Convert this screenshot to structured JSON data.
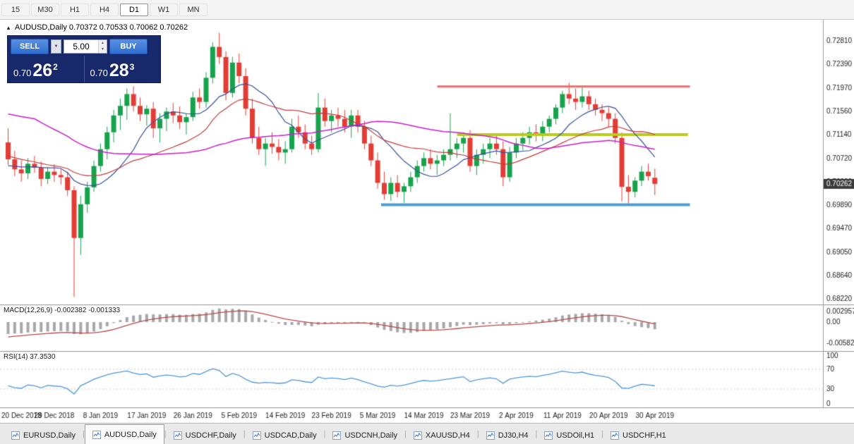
{
  "toolbar": {
    "timeframes": [
      {
        "label": "15",
        "active": false
      },
      {
        "label": "M30",
        "active": false
      },
      {
        "label": "H1",
        "active": false
      },
      {
        "label": "H4",
        "active": false
      },
      {
        "label": "D1",
        "active": true
      },
      {
        "label": "W1",
        "active": false
      },
      {
        "label": "MN",
        "active": false
      }
    ]
  },
  "symbol_bar": {
    "collapse_icon": "▲",
    "text": "AUDUSD,Daily 0.70372 0.70533 0.70062 0.70262"
  },
  "trade_panel": {
    "sell_label": "SELL",
    "buy_label": "BUY",
    "volume": "5.00",
    "dropdown_icon": "▼",
    "spin_up": "▲",
    "spin_down": "▼",
    "sell_price": {
      "small": "0.70",
      "big": "26",
      "sup": "2"
    },
    "buy_price": {
      "small": "0.70",
      "big": "28",
      "sup": "3"
    }
  },
  "main_axis": {
    "labels": [
      "0.72810",
      "0.72390",
      "0.71970",
      "0.71560",
      "0.71140",
      "0.70720",
      "0.70300",
      "0.69890",
      "0.69470",
      "0.69050",
      "0.68640",
      "0.68220"
    ],
    "current_price_label": "0.70262"
  },
  "macd_panel": {
    "title": "MACD(12,26,9) -0.002382 -0.001333",
    "axis": [
      {
        "label": "0.002957",
        "value": 0.002957
      },
      {
        "label": "0.00",
        "value": 0
      },
      {
        "label": "-0.005823",
        "value": -0.005823
      }
    ]
  },
  "rsi_panel": {
    "title": "RSI(14) 37.3530",
    "axis": [
      {
        "label": "100",
        "value": 100
      },
      {
        "label": "70",
        "value": 70
      },
      {
        "label": "30",
        "value": 30
      },
      {
        "label": "0",
        "value": 0
      }
    ]
  },
  "date_axis": {
    "labels": [
      "20 Dec 2018",
      "29 Dec 2018",
      "8 Jan 2019",
      "17 Jan 2019",
      "26 Jan 2019",
      "5 Feb 2019",
      "14 Feb 2019",
      "23 Feb 2019",
      "5 Mar 2019",
      "14 Mar 2019",
      "23 Mar 2019",
      "2 Apr 2019",
      "11 Apr 2019",
      "20 Apr 2019",
      "30 Apr 2019"
    ],
    "label_every": 7
  },
  "tabs": [
    {
      "label": "EURUSD,Daily",
      "active": false
    },
    {
      "label": "AUDUSD,Daily",
      "active": true
    },
    {
      "label": "USDCHF,Daily",
      "active": false
    },
    {
      "label": "USDCAD,Daily",
      "active": false
    },
    {
      "label": "USDCNH,Daily",
      "active": false
    },
    {
      "label": "XAUUSD,H4",
      "active": false
    },
    {
      "label": "DJ30,H4",
      "active": false
    },
    {
      "label": "USDOil,H1",
      "active": false
    },
    {
      "label": "USDCHF,H1",
      "active": false
    }
  ],
  "chart_data": {
    "type": "candlestick",
    "symbol": "AUDUSD",
    "timeframe": "Daily",
    "today_ohlc": {
      "open": 0.70372,
      "high": 0.70533,
      "low": 0.70062,
      "close": 0.70262
    },
    "ylim": [
      0.6818,
      0.7312
    ],
    "ohlc": [
      [
        0.71,
        0.7125,
        0.706,
        0.707
      ],
      [
        0.707,
        0.7085,
        0.704,
        0.7052
      ],
      [
        0.7052,
        0.7068,
        0.703,
        0.7045
      ],
      [
        0.7045,
        0.7072,
        0.7035,
        0.7062
      ],
      [
        0.7062,
        0.7076,
        0.7046,
        0.7055
      ],
      [
        0.7055,
        0.7066,
        0.7022,
        0.7035
      ],
      [
        0.7035,
        0.7056,
        0.7026,
        0.7048
      ],
      [
        0.7048,
        0.7061,
        0.703,
        0.7042
      ],
      [
        0.7042,
        0.7052,
        0.7025,
        0.7038
      ],
      [
        0.7038,
        0.7048,
        0.7005,
        0.7015
      ],
      [
        0.7015,
        0.7022,
        0.6825,
        0.693
      ],
      [
        0.693,
        0.7005,
        0.69,
        0.699
      ],
      [
        0.699,
        0.703,
        0.6975,
        0.702
      ],
      [
        0.702,
        0.7068,
        0.7012,
        0.7058
      ],
      [
        0.7058,
        0.7098,
        0.7048,
        0.7088
      ],
      [
        0.7088,
        0.7128,
        0.707,
        0.7118
      ],
      [
        0.7118,
        0.7158,
        0.71,
        0.7148
      ],
      [
        0.7148,
        0.7178,
        0.7122,
        0.7165
      ],
      [
        0.7165,
        0.7196,
        0.714,
        0.7186
      ],
      [
        0.7186,
        0.72,
        0.7155,
        0.7165
      ],
      [
        0.7165,
        0.718,
        0.7138,
        0.715
      ],
      [
        0.715,
        0.7166,
        0.713,
        0.716
      ],
      [
        0.716,
        0.7172,
        0.7108,
        0.7125
      ],
      [
        0.7125,
        0.7152,
        0.71,
        0.7142
      ],
      [
        0.7142,
        0.7162,
        0.712,
        0.7155
      ],
      [
        0.7155,
        0.717,
        0.7134,
        0.7148
      ],
      [
        0.7148,
        0.7164,
        0.7124,
        0.7136
      ],
      [
        0.7136,
        0.7152,
        0.7114,
        0.7145
      ],
      [
        0.7145,
        0.719,
        0.7138,
        0.718
      ],
      [
        0.718,
        0.7196,
        0.716,
        0.7172
      ],
      [
        0.7172,
        0.7225,
        0.7162,
        0.7215
      ],
      [
        0.7215,
        0.7278,
        0.7205,
        0.727
      ],
      [
        0.727,
        0.7295,
        0.724,
        0.7252
      ],
      [
        0.7252,
        0.7262,
        0.7175,
        0.7188
      ],
      [
        0.7188,
        0.7252,
        0.718,
        0.7242
      ],
      [
        0.7242,
        0.7258,
        0.7205,
        0.7218
      ],
      [
        0.7218,
        0.7232,
        0.7148,
        0.716
      ],
      [
        0.716,
        0.7178,
        0.7098,
        0.7108
      ],
      [
        0.7108,
        0.7128,
        0.7078,
        0.7088
      ],
      [
        0.7088,
        0.7108,
        0.7058,
        0.7098
      ],
      [
        0.7098,
        0.7118,
        0.708,
        0.7092
      ],
      [
        0.7092,
        0.7106,
        0.7068,
        0.7082
      ],
      [
        0.7082,
        0.7102,
        0.7062,
        0.7088
      ],
      [
        0.7088,
        0.7142,
        0.7082,
        0.7128
      ],
      [
        0.7128,
        0.7148,
        0.7108,
        0.7118
      ],
      [
        0.7118,
        0.7132,
        0.7088,
        0.7098
      ],
      [
        0.7098,
        0.7112,
        0.7078,
        0.7088
      ],
      [
        0.7088,
        0.7188,
        0.7082,
        0.7162
      ],
      [
        0.7162,
        0.7178,
        0.7128,
        0.7138
      ],
      [
        0.7138,
        0.7158,
        0.7118,
        0.7148
      ],
      [
        0.7148,
        0.7162,
        0.7128,
        0.7142
      ],
      [
        0.7142,
        0.7158,
        0.7118,
        0.7128
      ],
      [
        0.7128,
        0.7158,
        0.7108,
        0.7148
      ],
      [
        0.7148,
        0.7158,
        0.7118,
        0.7128
      ],
      [
        0.7128,
        0.7138,
        0.7088,
        0.7098
      ],
      [
        0.7098,
        0.7112,
        0.7058,
        0.7068
      ],
      [
        0.7068,
        0.7082,
        0.7018,
        0.7028
      ],
      [
        0.7028,
        0.7048,
        0.6998,
        0.7008
      ],
      [
        0.7008,
        0.7038,
        0.6996,
        0.7028
      ],
      [
        0.7028,
        0.7042,
        0.7002,
        0.7012
      ],
      [
        0.7012,
        0.7028,
        0.6993,
        0.7022
      ],
      [
        0.7022,
        0.7048,
        0.7012,
        0.7038
      ],
      [
        0.7038,
        0.7068,
        0.7028,
        0.7058
      ],
      [
        0.7058,
        0.7082,
        0.7048,
        0.7072
      ],
      [
        0.7072,
        0.7088,
        0.7052,
        0.7062
      ],
      [
        0.7062,
        0.7078,
        0.7042,
        0.7068
      ],
      [
        0.7068,
        0.7088,
        0.7058,
        0.7078
      ],
      [
        0.7078,
        0.7152,
        0.7068,
        0.7088
      ],
      [
        0.7088,
        0.7108,
        0.7072,
        0.7098
      ],
      [
        0.7098,
        0.7118,
        0.7082,
        0.7108
      ],
      [
        0.7108,
        0.7122,
        0.7048,
        0.7058
      ],
      [
        0.7058,
        0.7088,
        0.7042,
        0.7078
      ],
      [
        0.7078,
        0.7098,
        0.7062,
        0.7088
      ],
      [
        0.7088,
        0.7108,
        0.7072,
        0.7098
      ],
      [
        0.7098,
        0.7112,
        0.7078,
        0.7088
      ],
      [
        0.7088,
        0.7102,
        0.7022,
        0.7038
      ],
      [
        0.7038,
        0.7092,
        0.703,
        0.7082
      ],
      [
        0.7082,
        0.7108,
        0.7072,
        0.7098
      ],
      [
        0.7098,
        0.7118,
        0.7086,
        0.7108
      ],
      [
        0.7108,
        0.7128,
        0.7096,
        0.7118
      ],
      [
        0.7118,
        0.7132,
        0.7102,
        0.7112
      ],
      [
        0.7112,
        0.7138,
        0.7102,
        0.7128
      ],
      [
        0.7128,
        0.7148,
        0.7118,
        0.7142
      ],
      [
        0.7142,
        0.7168,
        0.7132,
        0.7162
      ],
      [
        0.7162,
        0.7192,
        0.7152,
        0.7186
      ],
      [
        0.7186,
        0.7206,
        0.7168,
        0.7178
      ],
      [
        0.7178,
        0.7196,
        0.7158,
        0.7172
      ],
      [
        0.7172,
        0.72,
        0.7162,
        0.7182
      ],
      [
        0.7182,
        0.7192,
        0.7158,
        0.7168
      ],
      [
        0.7168,
        0.7178,
        0.7148,
        0.7158
      ],
      [
        0.7158,
        0.7168,
        0.7138,
        0.7152
      ],
      [
        0.7152,
        0.7162,
        0.7128,
        0.7142
      ],
      [
        0.7142,
        0.7152,
        0.7098,
        0.7108
      ],
      [
        0.7108,
        0.7118,
        0.6995,
        0.7021
      ],
      [
        0.7021,
        0.7042,
        0.6992,
        0.7012
      ],
      [
        0.7012,
        0.7038,
        0.7002,
        0.7032
      ],
      [
        0.7032,
        0.7058,
        0.7022,
        0.7048
      ],
      [
        0.7048,
        0.7062,
        0.7032,
        0.704
      ],
      [
        0.70372,
        0.70533,
        0.70062,
        0.70262
      ]
    ],
    "seed_closes": [
      0.734,
      0.7328,
      0.7315,
      0.7302,
      0.7295,
      0.7282,
      0.727,
      0.7258,
      0.7246,
      0.7235,
      0.7222,
      0.721,
      0.72,
      0.7188,
      0.7176,
      0.7166,
      0.7154,
      0.7144,
      0.7134,
      0.7124,
      0.7114,
      0.7106,
      0.7112,
      0.71,
      0.7092,
      0.7096,
      0.7084,
      0.7076,
      0.708,
      0.707,
      0.7074,
      0.7062,
      0.7056,
      0.7064,
      0.7052,
      0.7046,
      0.7054,
      0.7042,
      0.705,
      0.709
    ],
    "moving_averages": [
      {
        "period": 10,
        "color": "#3a4f9e",
        "width": 1.2
      },
      {
        "period": 21,
        "color": "#c23a3a",
        "width": 1.2
      },
      {
        "period": 45,
        "color": "#c81ec8",
        "width": 1.5
      }
    ],
    "hlines": [
      {
        "price": 0.71995,
        "color": "#f26a6a",
        "width": 3,
        "i1": 65.4,
        "i2": 103.7
      },
      {
        "price": 0.7114,
        "color": "#b9cc1e",
        "width": 4,
        "i1": 68.4,
        "i2": 103.4
      },
      {
        "price": 0.6989,
        "color": "#4e9bd4",
        "width": 4,
        "i1": 56.9,
        "i2": 103.7
      }
    ],
    "macd": {
      "fast": 12,
      "slow": 26,
      "signal": 9,
      "plot_ylim": [
        -0.0068,
        0.0037
      ],
      "hist_color": "#a8a8a8",
      "signal_color": "#b34a4a"
    },
    "rsi": {
      "period": 14,
      "plot_ylim": [
        0,
        100
      ],
      "levels": [
        70,
        30
      ],
      "color": "#4f97d6"
    },
    "colors": {
      "bull": "#17a24c",
      "bear": "#e23d35",
      "axis_text": "#1a1a1a",
      "axis_line": "#9b9b9b",
      "divider": "#9b9b9b",
      "price_tag_bg": "#3a3a3a",
      "price_tag_text": "#ffffff",
      "level_dotted": "#c8c8c8",
      "panel_bg": "#17286b",
      "trade_button": "#2e6fd2"
    }
  }
}
